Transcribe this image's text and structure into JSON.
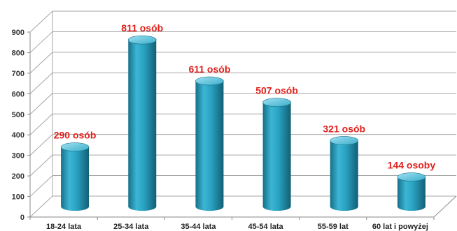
{
  "chart_data": {
    "type": "bar",
    "style": "3d-cylinder",
    "title": "",
    "xlabel": "",
    "ylabel": "",
    "categories": [
      "18-24 lata",
      "25-34 lata",
      "35-44 lata",
      "45-54 lata",
      "55-59 lat",
      "60 lat i powyżej"
    ],
    "values": [
      290,
      811,
      611,
      507,
      321,
      144
    ],
    "data_labels": [
      "290 osób",
      "811 osób",
      "611 osób",
      "507 osób",
      "321 osób",
      "144 osoby"
    ],
    "ylim": [
      0,
      900
    ],
    "yticks": [
      0,
      100,
      200,
      300,
      400,
      500,
      600,
      700,
      800,
      900
    ],
    "grid": true,
    "legend": "none"
  },
  "colors": {
    "bar": "#2aa3c3",
    "bar_dark": "#16708a",
    "bar_light": "#8fd9ec",
    "label": "#e0201b",
    "grid": "#a6a6a6"
  }
}
